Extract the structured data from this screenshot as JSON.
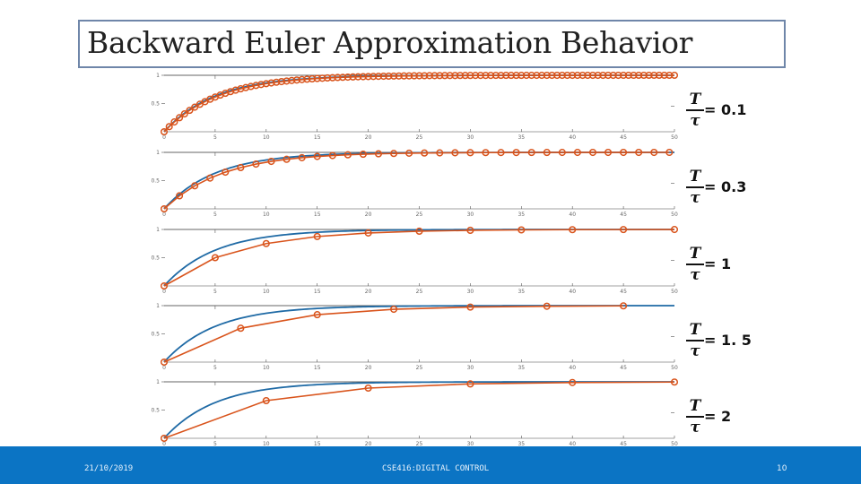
{
  "slide": {
    "title": "Backward Euler Approximation Behavior",
    "footer_date": "21/10/2019",
    "footer_course": "CSE416:DIGITAL CONTROL",
    "page_number": "10"
  },
  "colors": {
    "continuous": "#1f6aa5",
    "backward_euler": "#d9541c",
    "footer": "#0b74c4",
    "title_border": "#6f86a9"
  },
  "chart_data": [
    {
      "type": "line",
      "ratio": 0.1,
      "label": "= 0.1",
      "x_ticks": [
        "0",
        "5",
        "10",
        "15",
        "20",
        "25",
        "30",
        "35",
        "40",
        "45",
        "50"
      ],
      "y_ticks": [
        "1",
        "0.5"
      ],
      "xlim": [
        0,
        50
      ],
      "ylim": [
        0,
        1
      ],
      "grid": false
    },
    {
      "type": "line",
      "ratio": 0.3,
      "label": "= 0.3",
      "x_ticks": [
        "0",
        "5",
        "10",
        "15",
        "20",
        "25",
        "30",
        "35",
        "40",
        "45",
        "50"
      ],
      "y_ticks": [
        "1",
        "0.5"
      ],
      "xlim": [
        0,
        50
      ],
      "ylim": [
        0,
        1
      ],
      "grid": false
    },
    {
      "type": "line",
      "ratio": 1,
      "label": "= 1",
      "x_ticks": [
        "0",
        "5",
        "10",
        "15",
        "20",
        "25",
        "30",
        "35",
        "40",
        "45",
        "50"
      ],
      "y_ticks": [
        "1",
        "0.5"
      ],
      "xlim": [
        0,
        50
      ],
      "ylim": [
        0,
        1
      ],
      "grid": false
    },
    {
      "type": "line",
      "ratio": 1.5,
      "label": "= 1. 5",
      "x_ticks": [
        "0",
        "5",
        "10",
        "15",
        "20",
        "25",
        "30",
        "35",
        "40",
        "45",
        "50"
      ],
      "y_ticks": [
        "1",
        "0.5"
      ],
      "xlim": [
        0,
        50
      ],
      "ylim": [
        0,
        1
      ],
      "grid": false
    },
    {
      "type": "line",
      "ratio": 2,
      "label": "= 2",
      "x_ticks": [
        "0",
        "5",
        "10",
        "15",
        "20",
        "25",
        "30",
        "35",
        "40",
        "45",
        "50"
      ],
      "y_ticks": [
        "1",
        "0.5"
      ],
      "xlim": [
        0,
        50
      ],
      "ylim": [
        0,
        1
      ],
      "grid": false
    }
  ],
  "fraction": {
    "numerator": "T",
    "denominator": "τ"
  }
}
